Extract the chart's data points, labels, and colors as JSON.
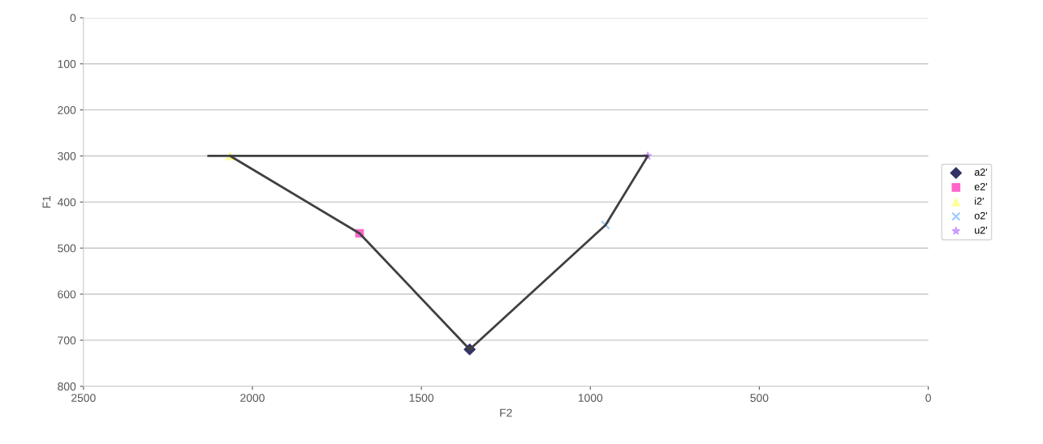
{
  "chart_data": {
    "type": "scatter",
    "xlabel": "F2",
    "ylabel": "F1",
    "xlim": [
      2500,
      0
    ],
    "xticks": [
      2500,
      2000,
      1500,
      1000,
      500,
      0
    ],
    "ylim": [
      800,
      0
    ],
    "yticks": [
      0,
      100,
      200,
      300,
      400,
      500,
      600,
      700,
      800
    ],
    "grid": "y",
    "legend": "right",
    "series": [
      {
        "type": "line",
        "color": "#404040",
        "x": [
          2130,
          830,
          955,
          1357,
          1683,
          2066
        ],
        "values": [
          300,
          300,
          450,
          720,
          468,
          300
        ],
        "marker": "none"
      },
      {
        "name": "a2'",
        "color": "#333366",
        "x": [
          1357
        ],
        "values": [
          720
        ],
        "marker": "diamond"
      },
      {
        "name": "e2'",
        "color": "#ff66cc",
        "x": [
          1683
        ],
        "values": [
          468
        ],
        "marker": "square"
      },
      {
        "name": "i2'",
        "color": "#ffff99",
        "x": [
          2066
        ],
        "values": [
          300
        ],
        "marker": "triangle"
      },
      {
        "name": "o2'",
        "color": "#99ccff",
        "x": [
          955
        ],
        "values": [
          450
        ],
        "marker": "cross"
      },
      {
        "name": "u2'",
        "color": "#cc99ff",
        "x": [
          830
        ],
        "values": [
          300
        ],
        "marker": "star"
      }
    ]
  }
}
